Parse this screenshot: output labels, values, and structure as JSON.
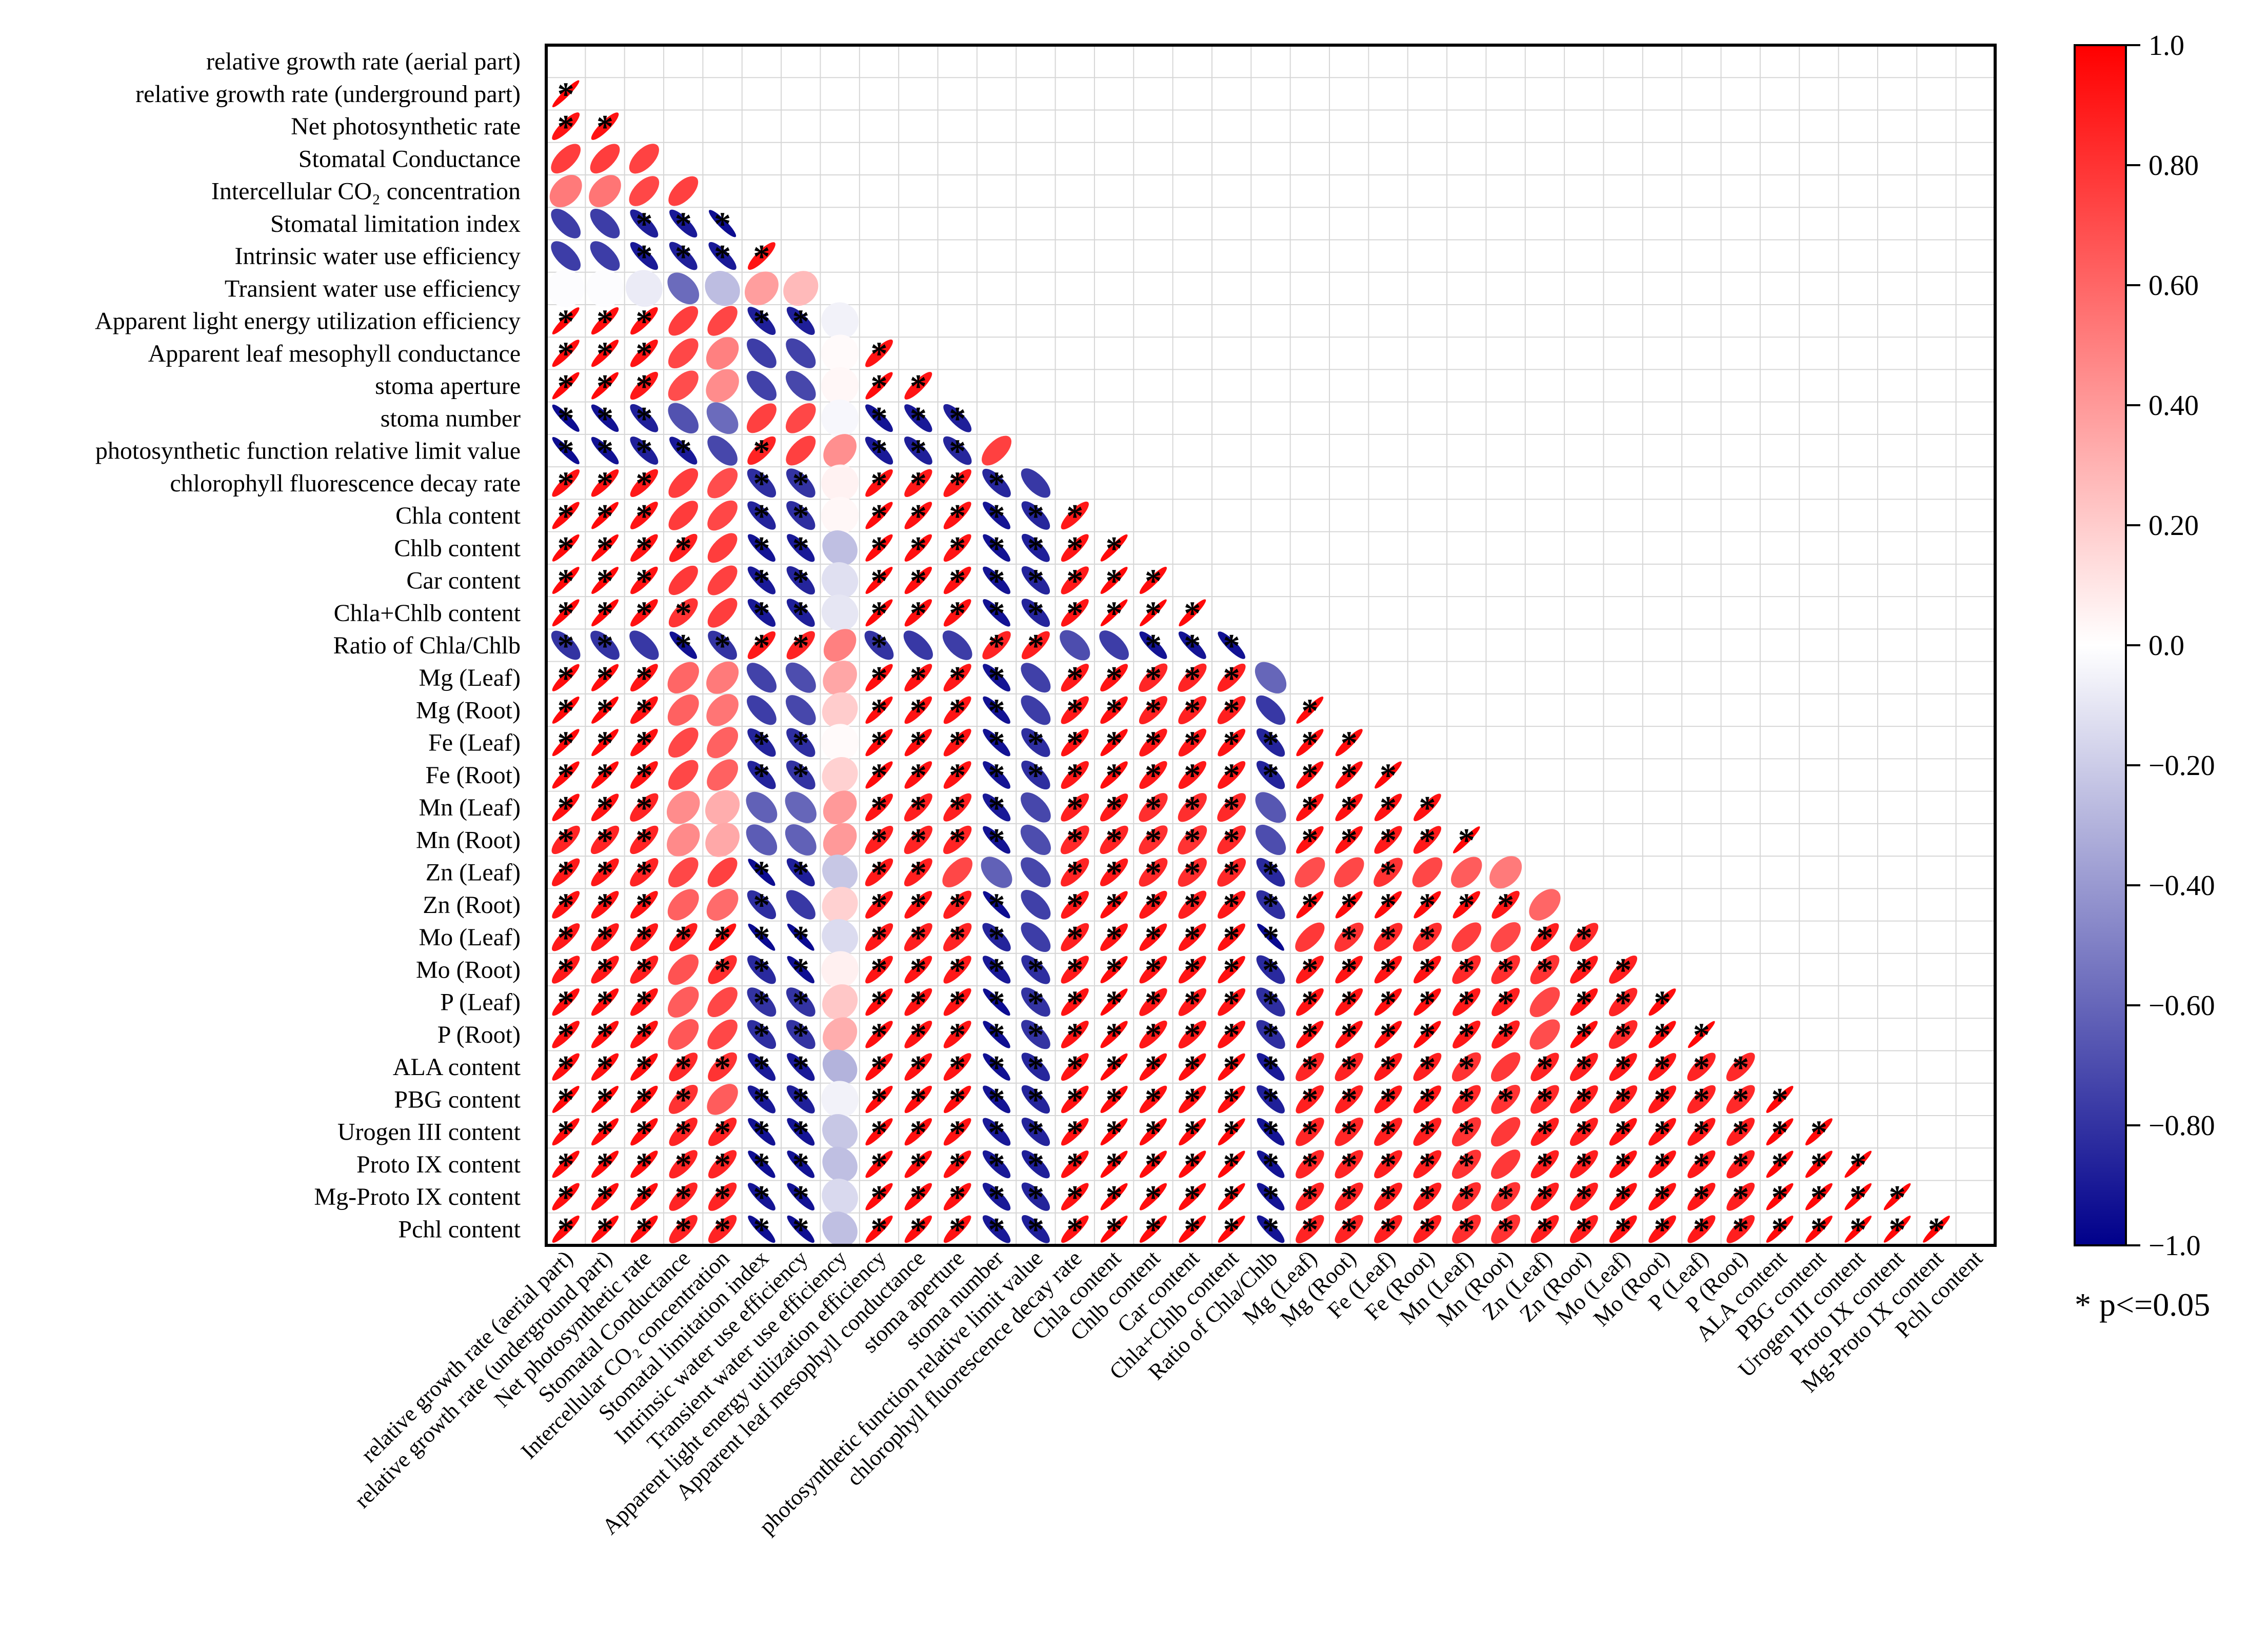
{
  "chart_data": {
    "type": "heatmap",
    "subtype": "correlation-ellipse-lower-triangle",
    "variables": [
      "relative growth rate (aerial part)",
      "relative growth rate (underground part)",
      "Net photosynthetic rate",
      "Stomatal Conductance",
      "Intercellular CO₂ concentration",
      "Stomatal limitation index",
      "Intrinsic water use efficiency",
      "Transient water use efficiency",
      "Apparent light energy utilization efficiency",
      "Apparent leaf mesophyll conductance",
      "stoma aperture",
      "stoma number",
      "photosynthetic function relative limit value",
      "chlorophyll fluorescence decay rate",
      "Chla content",
      "Chlb content",
      "Car content",
      "Chla+Chlb content",
      "Ratio of Chla/Chlb",
      "Mg (Leaf)",
      "Mg (Root)",
      "Fe (Leaf)",
      "Fe (Root)",
      "Mn (Leaf)",
      "Mn (Root)",
      "Zn (Leaf)",
      "Zn (Root)",
      "Mo (Leaf)",
      "Mo (Root)",
      "P (Leaf)",
      "P (Root)",
      "ALA content",
      "PBG content",
      "Urogen III content",
      "Proto IX content",
      "Mg-Proto IX content",
      "Pchl content"
    ],
    "correlations_lower_triangle": [
      [],
      [
        0.97
      ],
      [
        0.92,
        0.93
      ],
      [
        0.76,
        0.76,
        0.74
      ],
      [
        0.52,
        0.54,
        0.72,
        0.75
      ],
      [
        -0.76,
        -0.76,
        -0.88,
        -0.9,
        -0.95
      ],
      [
        -0.76,
        -0.76,
        -0.9,
        -0.88,
        -0.9,
        0.92
      ],
      [
        -0.01,
        -0.01,
        -0.08,
        -0.58,
        -0.26,
        0.38,
        0.27
      ],
      [
        0.96,
        0.94,
        0.93,
        0.76,
        0.73,
        -0.88,
        -0.88,
        -0.05
      ],
      [
        0.95,
        0.95,
        0.92,
        0.72,
        0.5,
        -0.76,
        -0.74,
        0.02,
        0.92
      ],
      [
        0.96,
        0.96,
        0.9,
        0.7,
        0.45,
        -0.74,
        -0.72,
        0.03,
        0.95,
        0.92
      ],
      [
        -0.95,
        -0.93,
        -0.88,
        -0.68,
        -0.58,
        0.75,
        0.72,
        -0.03,
        -0.92,
        -0.9,
        -0.88
      ],
      [
        -0.95,
        -0.93,
        -0.88,
        -0.9,
        -0.72,
        0.86,
        0.75,
        0.44,
        -0.9,
        -0.88,
        -0.85,
        0.75
      ],
      [
        0.93,
        0.93,
        0.9,
        0.76,
        0.7,
        -0.82,
        -0.8,
        0.05,
        0.93,
        0.9,
        0.9,
        -0.85,
        -0.78
      ],
      [
        0.95,
        0.96,
        0.92,
        0.77,
        0.72,
        -0.86,
        -0.82,
        0.03,
        0.95,
        0.93,
        0.92,
        -0.92,
        -0.85,
        0.9
      ],
      [
        0.96,
        0.96,
        0.93,
        0.88,
        0.76,
        -0.92,
        -0.9,
        -0.25,
        0.95,
        0.94,
        0.92,
        -0.93,
        -0.88,
        0.92,
        0.96
      ],
      [
        0.96,
        0.96,
        0.93,
        0.78,
        0.75,
        -0.9,
        -0.86,
        -0.12,
        0.96,
        0.94,
        0.93,
        -0.92,
        -0.86,
        0.9,
        0.96,
        0.95
      ],
      [
        0.96,
        0.96,
        0.93,
        0.8,
        0.76,
        -0.9,
        -0.88,
        -0.1,
        0.96,
        0.94,
        0.93,
        -0.93,
        -0.86,
        0.92,
        0.97,
        0.97,
        0.96
      ],
      [
        -0.8,
        -0.8,
        -0.78,
        -0.93,
        -0.8,
        0.9,
        0.86,
        0.5,
        -0.8,
        -0.78,
        -0.76,
        0.86,
        0.88,
        -0.7,
        -0.76,
        -0.92,
        -0.92,
        -0.93
      ],
      [
        0.95,
        0.95,
        0.92,
        0.6,
        0.52,
        -0.74,
        -0.7,
        0.35,
        0.94,
        0.92,
        0.91,
        -0.92,
        -0.75,
        0.9,
        0.92,
        0.85,
        0.86,
        0.88,
        -0.6
      ],
      [
        0.96,
        0.96,
        0.92,
        0.62,
        0.54,
        -0.76,
        -0.72,
        0.2,
        0.95,
        0.93,
        0.92,
        -0.93,
        -0.76,
        0.9,
        0.93,
        0.87,
        0.87,
        0.88,
        -0.78,
        0.96
      ],
      [
        0.96,
        0.96,
        0.93,
        0.72,
        0.62,
        -0.86,
        -0.82,
        0.02,
        0.95,
        0.94,
        0.92,
        -0.93,
        -0.82,
        0.92,
        0.95,
        0.9,
        0.9,
        0.92,
        -0.86,
        0.95,
        0.95
      ],
      [
        0.95,
        0.95,
        0.92,
        0.72,
        0.62,
        -0.86,
        -0.8,
        0.18,
        0.95,
        0.93,
        0.92,
        -0.92,
        -0.82,
        0.9,
        0.94,
        0.9,
        0.9,
        0.91,
        -0.86,
        0.94,
        0.94,
        0.96
      ],
      [
        0.94,
        0.93,
        0.86,
        0.45,
        0.32,
        -0.62,
        -0.6,
        0.4,
        0.92,
        0.88,
        0.88,
        -0.9,
        -0.72,
        0.88,
        0.9,
        0.82,
        0.82,
        0.84,
        -0.66,
        0.93,
        0.93,
        0.93,
        0.93
      ],
      [
        0.86,
        0.86,
        0.86,
        0.46,
        0.34,
        -0.64,
        -0.62,
        0.4,
        0.88,
        0.86,
        0.86,
        -0.92,
        -0.7,
        0.84,
        0.86,
        0.82,
        0.8,
        0.84,
        -0.7,
        0.93,
        0.93,
        0.9,
        0.9,
        0.97
      ],
      [
        0.9,
        0.9,
        0.86,
        0.72,
        0.75,
        -0.95,
        -0.88,
        -0.22,
        0.9,
        0.88,
        0.72,
        -0.62,
        -0.72,
        0.86,
        0.9,
        0.84,
        0.82,
        0.84,
        -0.84,
        0.7,
        0.72,
        0.8,
        0.72,
        0.64,
        0.52
      ],
      [
        0.92,
        0.92,
        0.92,
        0.62,
        0.58,
        -0.82,
        -0.78,
        0.18,
        0.92,
        0.92,
        0.88,
        -0.95,
        -0.75,
        0.9,
        0.94,
        0.9,
        0.88,
        0.9,
        -0.82,
        0.95,
        0.95,
        0.95,
        0.95,
        0.94,
        0.9,
        0.6
      ],
      [
        0.9,
        0.9,
        0.9,
        0.88,
        0.93,
        -0.96,
        -0.96,
        -0.14,
        0.9,
        0.88,
        0.86,
        -0.86,
        -0.76,
        0.88,
        0.92,
        0.93,
        0.92,
        0.93,
        -0.96,
        0.78,
        0.8,
        0.84,
        0.82,
        0.76,
        0.72,
        0.88,
        0.84
      ],
      [
        0.9,
        0.9,
        0.88,
        0.68,
        0.82,
        -0.84,
        -0.94,
        0.06,
        0.92,
        0.92,
        0.9,
        -0.9,
        -0.82,
        0.9,
        0.95,
        0.92,
        0.92,
        0.94,
        -0.84,
        0.9,
        0.92,
        0.92,
        0.92,
        0.84,
        0.82,
        0.8,
        0.9,
        0.88
      ],
      [
        0.94,
        0.94,
        0.92,
        0.64,
        0.72,
        -0.8,
        -0.8,
        0.22,
        0.94,
        0.92,
        0.92,
        -0.95,
        -0.8,
        0.92,
        0.96,
        0.9,
        0.9,
        0.92,
        -0.82,
        0.92,
        0.92,
        0.94,
        0.94,
        0.9,
        0.88,
        0.72,
        0.92,
        0.86,
        0.95
      ],
      [
        0.93,
        0.94,
        0.92,
        0.66,
        0.72,
        -0.82,
        -0.8,
        0.32,
        0.94,
        0.92,
        0.92,
        -0.94,
        -0.8,
        0.92,
        0.95,
        0.9,
        0.9,
        0.92,
        -0.82,
        0.93,
        0.93,
        0.94,
        0.95,
        0.9,
        0.88,
        0.7,
        0.94,
        0.84,
        0.94,
        0.97
      ],
      [
        0.94,
        0.94,
        0.94,
        0.84,
        0.8,
        -0.9,
        -0.9,
        -0.3,
        0.94,
        0.93,
        0.92,
        -0.94,
        -0.85,
        0.92,
        0.96,
        0.94,
        0.94,
        0.95,
        -0.9,
        0.85,
        0.86,
        0.9,
        0.88,
        0.8,
        0.78,
        0.86,
        0.88,
        0.9,
        0.9,
        0.86,
        0.84
      ],
      [
        0.96,
        0.96,
        0.94,
        0.8,
        0.64,
        -0.9,
        -0.88,
        -0.05,
        0.95,
        0.94,
        0.94,
        -0.92,
        -0.86,
        0.93,
        0.95,
        0.93,
        0.93,
        0.94,
        -0.88,
        0.88,
        0.88,
        0.9,
        0.9,
        0.84,
        0.8,
        0.84,
        0.88,
        0.88,
        0.9,
        0.86,
        0.84,
        0.96
      ],
      [
        0.95,
        0.95,
        0.94,
        0.86,
        0.86,
        -0.93,
        -0.92,
        -0.22,
        0.95,
        0.94,
        0.93,
        -0.9,
        -0.86,
        0.93,
        0.96,
        0.95,
        0.95,
        0.96,
        -0.92,
        0.85,
        0.85,
        0.88,
        0.88,
        0.8,
        0.78,
        0.88,
        0.88,
        0.92,
        0.92,
        0.9,
        0.88,
        0.96,
        0.96
      ],
      [
        0.95,
        0.95,
        0.94,
        0.86,
        0.86,
        -0.94,
        -0.93,
        -0.25,
        0.95,
        0.94,
        0.93,
        -0.9,
        -0.88,
        0.93,
        0.96,
        0.95,
        0.95,
        0.96,
        -0.92,
        0.85,
        0.86,
        0.88,
        0.88,
        0.8,
        0.78,
        0.88,
        0.88,
        0.92,
        0.92,
        0.9,
        0.88,
        0.96,
        0.96,
        0.97
      ],
      [
        0.94,
        0.94,
        0.94,
        0.86,
        0.86,
        -0.92,
        -0.93,
        -0.15,
        0.95,
        0.94,
        0.93,
        -0.9,
        -0.86,
        0.93,
        0.96,
        0.95,
        0.95,
        0.96,
        -0.92,
        0.86,
        0.86,
        0.88,
        0.88,
        0.82,
        0.8,
        0.88,
        0.88,
        0.92,
        0.92,
        0.9,
        0.88,
        0.96,
        0.96,
        0.97,
        0.97
      ],
      [
        0.95,
        0.95,
        0.94,
        0.86,
        0.86,
        -0.94,
        -0.94,
        -0.25,
        0.95,
        0.94,
        0.93,
        -0.9,
        -0.88,
        0.93,
        0.96,
        0.95,
        0.95,
        0.96,
        -0.92,
        0.86,
        0.86,
        0.88,
        0.88,
        0.82,
        0.8,
        0.88,
        0.88,
        0.92,
        0.92,
        0.9,
        0.88,
        0.96,
        0.96,
        0.97,
        0.97,
        0.97
      ]
    ],
    "significant_threshold": 0.8,
    "colorbar": {
      "range": [
        -1.0,
        1.0
      ],
      "ticks": [
        {
          "value": 1.0,
          "label": "1.0"
        },
        {
          "value": 0.8,
          "label": "0.80"
        },
        {
          "value": 0.6,
          "label": "0.60"
        },
        {
          "value": 0.4,
          "label": "0.40"
        },
        {
          "value": 0.2,
          "label": "0.20"
        },
        {
          "value": 0.0,
          "label": "0.0"
        },
        {
          "value": -0.2,
          "label": "−0.20"
        },
        {
          "value": -0.4,
          "label": "−0.40"
        },
        {
          "value": -0.6,
          "label": "−0.60"
        },
        {
          "value": -0.8,
          "label": "−0.80"
        },
        {
          "value": -1.0,
          "label": "−1.0"
        }
      ],
      "colors": {
        "negative": "#00008b",
        "zero": "#ffffff",
        "positive": "#ff0000"
      }
    },
    "significance_note": "* p<=0.05"
  }
}
